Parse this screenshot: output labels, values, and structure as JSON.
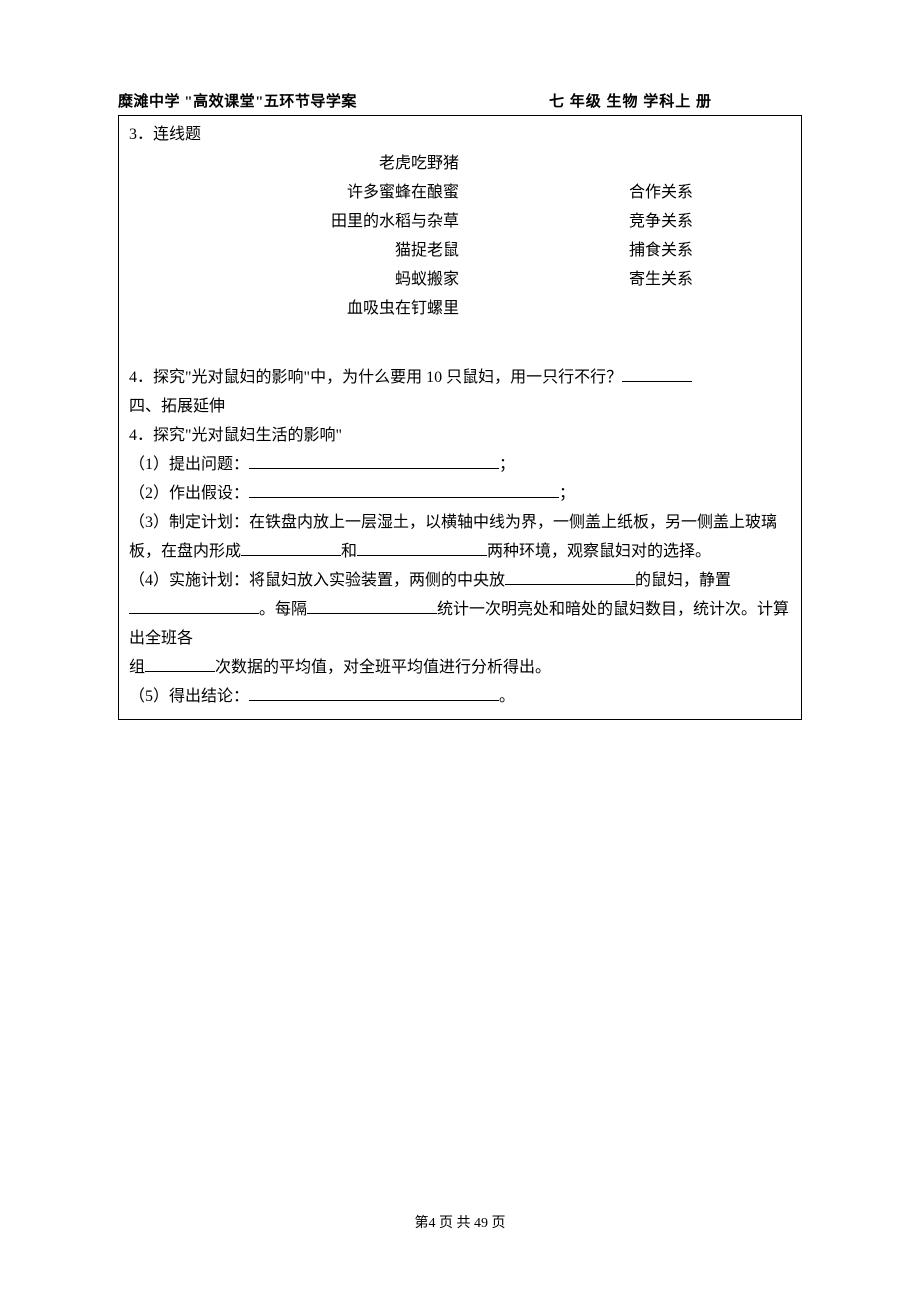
{
  "header": {
    "school_line": "糜滩中学  \"高效课堂\"五环节导学案",
    "grade_line": "七 年级 生物 学科上 册"
  },
  "q3": {
    "title": "3．连线题",
    "left": [
      "老虎吃野猪",
      "许多蜜蜂在酿蜜",
      "田里的水稻与杂草",
      "猫捉老鼠",
      "蚂蚁搬家",
      "血吸虫在钉螺里"
    ],
    "right": [
      "合作关系",
      "竞争关系",
      "捕食关系",
      "寄生关系"
    ]
  },
  "q4a": {
    "text_before": "4．探究\"光对鼠妇的影响\"中，为什么要用 10 只鼠妇，用一只行不行？"
  },
  "section4": {
    "title": "四、拓展延伸"
  },
  "q4b": {
    "title": "4．探究\"光对鼠妇生活的影响\"",
    "s1_label": "（1）提出问题：",
    "s1_tail": "；",
    "s2_label": "（2）作出假设：",
    "s2_tail": "；",
    "s3_a": "（3）制定计划：在铁盘内放上一层湿土，以横轴中线为界，一侧盖上纸板，另一侧盖上玻璃板，在盘内形成",
    "s3_b": "和",
    "s3_c": "两种环境，观察鼠妇对的选择。",
    "s4_a": " （4）实施计划：将鼠妇放入实验装置，两侧的中央放",
    "s4_b": "的鼠妇，静置",
    "s4_c": "。每隔",
    "s4_d": "统计一次明亮处和暗处的鼠妇数目，统计次。计算出全班各",
    "s4_e": "组",
    "s4_f": "次数据的平均值，对全班平均值进行分析得出。",
    "s5_label": "（5）得出结论：",
    "s5_tail": "。"
  },
  "footer": {
    "prefix": "第",
    "page_current": "4",
    "mid": " 页 共 ",
    "page_total": "49",
    "suffix": " 页"
  }
}
